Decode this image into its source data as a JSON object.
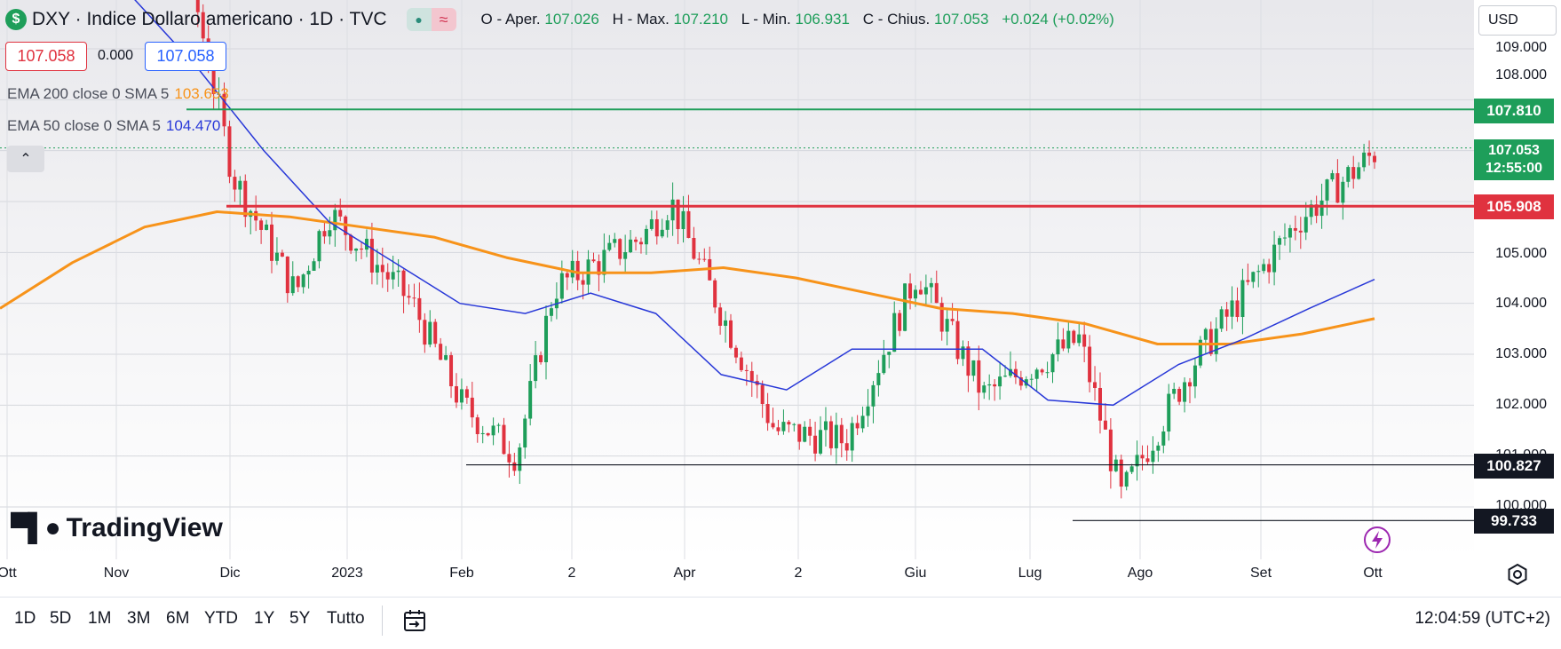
{
  "header": {
    "symbol_icon": "$",
    "title": "DXY · Indice Dollaro americano · 1D · TVC",
    "pill_icons": [
      "dot-icon",
      "wave-icon"
    ],
    "ohlc": {
      "open_label": "O - Aper.",
      "open": "107.026",
      "high_label": "H - Max.",
      "high": "107.210",
      "low_label": "L - Min.",
      "low": "106.931",
      "close_label": "C - Chius.",
      "close": "107.053",
      "change": "+0.024 (+0.02%)"
    }
  },
  "quote": {
    "bid": "107.058",
    "spread": "0.000",
    "ask": "107.058"
  },
  "indicators": {
    "ema200_label": "EMA 200 close 0 SMA 5",
    "ema200_value": "103.653",
    "ema50_label": "EMA 50 close 0 SMA 5",
    "ema50_value": "104.470"
  },
  "collapse_glyph": "⌃",
  "logo_text": "TradingView",
  "currency": "USD",
  "price_axis": [
    "109.000",
    "108.000",
    "105.000",
    "104.000",
    "103.000",
    "102.000",
    "101.000",
    "100.000"
  ],
  "price_tags": {
    "resistance": "107.810",
    "last_price": "107.053",
    "countdown": "12:55:00",
    "support_red": "105.908",
    "support_1": "100.827",
    "support_2": "99.733"
  },
  "time_axis": [
    "Ott",
    "Nov",
    "Dic",
    "2023",
    "Feb",
    "2",
    "Apr",
    "2",
    "Giu",
    "Lug",
    "Ago",
    "Set",
    "Ott"
  ],
  "ranges": [
    "1D",
    "5D",
    "1M",
    "3M",
    "6M",
    "YTD",
    "1Y",
    "5Y",
    "Tutto"
  ],
  "clock": "12:04:59 (UTC+2)",
  "colors": {
    "up": "#1e9e5a",
    "down": "#e0323f",
    "ema200": "#f7931a",
    "ema50": "#2838d8",
    "level_line": "#131722"
  },
  "chart_data": {
    "type": "line",
    "title": "DXY · Indice Dollaro americano · 1D · TVC",
    "ylim": [
      99.2,
      109.6
    ],
    "series": [
      {
        "name": "EMA 200 close 0 SMA 5",
        "values": [
          103.9,
          104.8,
          105.5,
          105.8,
          105.7,
          105.5,
          105.3,
          104.9,
          104.6,
          104.6,
          104.7,
          104.5,
          104.2,
          103.9,
          103.8,
          103.6,
          103.2,
          103.2,
          103.4,
          103.7
        ]
      },
      {
        "name": "EMA 50 close 0 SMA 5",
        "values": [
          110.0,
          108.6,
          107.0,
          105.6,
          104.8,
          104.0,
          103.8,
          104.2,
          103.8,
          102.6,
          102.3,
          103.1,
          103.1,
          103.1,
          102.1,
          102.0,
          102.8,
          103.3,
          103.9,
          104.47
        ]
      }
    ],
    "levels": [
      107.81,
      105.908,
      100.827,
      99.733
    ],
    "last_close": 107.053
  }
}
